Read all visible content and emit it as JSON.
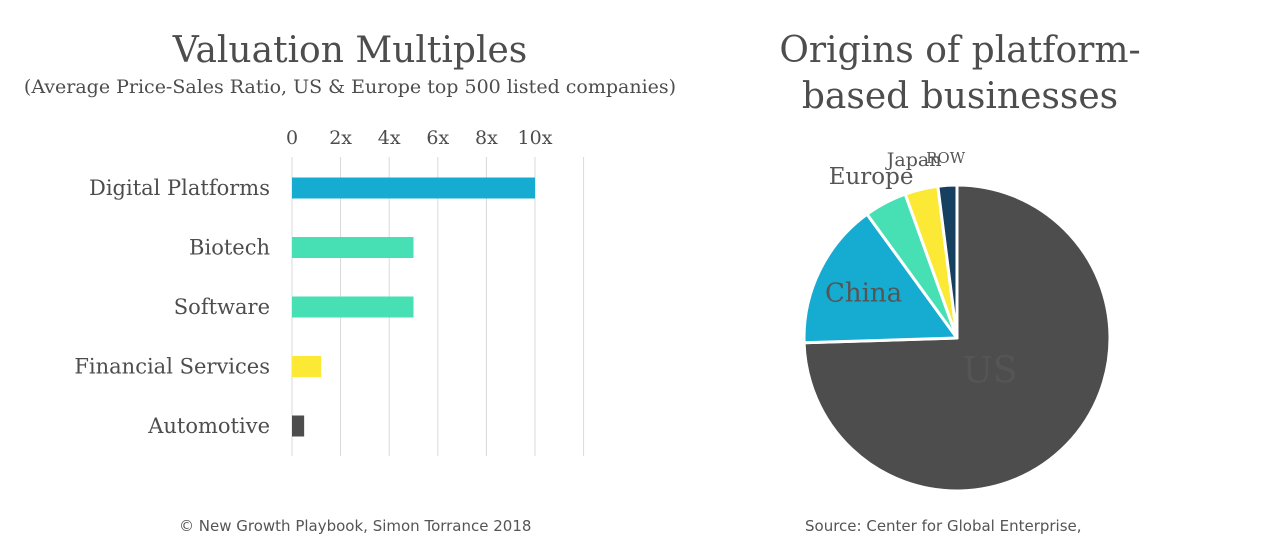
{
  "chart_data": [
    {
      "type": "bar",
      "orientation": "horizontal",
      "title": "Valuation Multiples",
      "subtitle": "(Average Price-Sales Ratio, US & Europe top 500 listed companies)",
      "xticks": [
        "0",
        "2x",
        "4x",
        "6x",
        "8x",
        "10x"
      ],
      "xlim": [
        0,
        12
      ],
      "grid": true,
      "categories": [
        "Digital Platforms",
        "Biotech",
        "Software",
        "Financial Services",
        "Automotive"
      ],
      "values": [
        10,
        5,
        5,
        1.2,
        0.5
      ],
      "colors": [
        "#16abd0",
        "#47dfb4",
        "#47dfb4",
        "#fce935",
        "#4d4d4d"
      ]
    },
    {
      "type": "pie",
      "title": "Origins of platform-based businesses",
      "title_lines": [
        "Origins of platform-",
        "based businesses"
      ],
      "slices": [
        {
          "label": "US",
          "value": 74.5,
          "color": "#4d4d4d"
        },
        {
          "label": "China",
          "value": 15.5,
          "color": "#16abd0"
        },
        {
          "label": "Europe",
          "value": 4.5,
          "color": "#47dfb4"
        },
        {
          "label": "Japan",
          "value": 3.5,
          "color": "#fce935"
        },
        {
          "label": "ROW",
          "value": 2.0,
          "color": "#173f5f"
        }
      ]
    }
  ],
  "footer": {
    "left": "© New Growth Playbook, Simon Torrance 2018",
    "right": "Source: Center for Global Enterprise,"
  }
}
